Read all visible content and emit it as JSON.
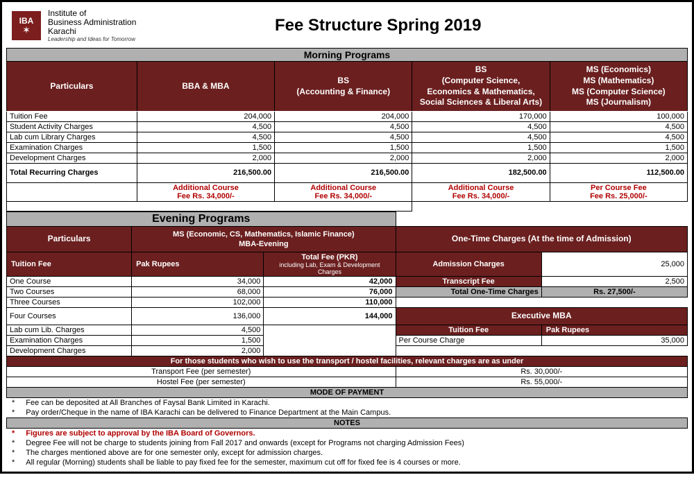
{
  "colors": {
    "maroon": "#6b1f1f",
    "grey": "#b0b0b0",
    "red": "#b00000",
    "black": "#000000",
    "white": "#ffffff"
  },
  "institute": {
    "abbr": "IBA",
    "line1": "Institute of",
    "line2": "Business Administration",
    "line3": "Karachi",
    "motto": "Leadership and Ideas for Tomorrow"
  },
  "title": "Fee Structure Spring 2019",
  "morning": {
    "heading": "Morning Programs",
    "particulars_header": "Particulars",
    "columns": [
      "BBA & MBA",
      "BS\n(Accounting & Finance)",
      "BS\n(Computer Science,\nEconomics & Mathematics,\nSocial Sciences & Liberal Arts)",
      "MS (Economics)\nMS (Mathematics)\nMS (Computer Science)\nMS (Journalism)"
    ],
    "rows": [
      {
        "label": "Tuition Fee",
        "vals": [
          "204,000",
          "204,000",
          "170,000",
          "100,000"
        ]
      },
      {
        "label": "Student Activity Charges",
        "vals": [
          "4,500",
          "4,500",
          "4,500",
          "4,500"
        ]
      },
      {
        "label": "Lab cum Library Charges",
        "vals": [
          "4,500",
          "4,500",
          "4,500",
          "4,500"
        ]
      },
      {
        "label": "Examination Charges",
        "vals": [
          "1,500",
          "1,500",
          "1,500",
          "1,500"
        ]
      },
      {
        "label": "Development Charges",
        "vals": [
          "2,000",
          "2,000",
          "2,000",
          "2,000"
        ]
      }
    ],
    "total_label": "Total Recurring Charges",
    "totals": [
      "216,500.00",
      "216,500.00",
      "182,500.00",
      "112,500.00"
    ],
    "extra": [
      "Additional Course\nFee Rs. 34,000/-",
      "Additional Course\nFee Rs. 34,000/-",
      "Additional Course\nFee Rs. 34,000/-",
      "Per Course Fee\nFee Rs. 25,000/-"
    ]
  },
  "evening": {
    "heading": "Evening Programs",
    "particulars_header": "Particulars",
    "program_header": "MS (Economic, CS, Mathematics, Islamic Finance)\nMBA-Evening",
    "tuition_label": "Tuition Fee",
    "col1": "Pak Rupees",
    "col2_title": "Total Fee (PKR)",
    "col2_sub": "including Lab, Exam & Development Charges",
    "rows": [
      {
        "label": "One Course",
        "v1": "34,000",
        "v2": "42,000"
      },
      {
        "label": "Two Courses",
        "v1": "68,000",
        "v2": "76,000"
      },
      {
        "label": "Three Courses",
        "v1": "102,000",
        "v2": "110,000"
      },
      {
        "label": "Four Courses",
        "v1": "136,000",
        "v2": "144,000"
      }
    ],
    "extras": [
      {
        "label": "Lab cum Lib. Charges",
        "v": "4,500"
      },
      {
        "label": "Examination Charges",
        "v": "1,500"
      },
      {
        "label": "Development Charges",
        "v": "2,000"
      }
    ]
  },
  "onetime": {
    "heading": "One-Time Charges (At the time of Admission)",
    "rows": [
      {
        "label": "Admission Charges",
        "val": "25,000"
      },
      {
        "label": "Transcript Fee",
        "val": "2,500"
      }
    ],
    "total_label": "Total One-Time Charges",
    "total_val": "Rs. 27,500/-"
  },
  "emba": {
    "heading": "Executive MBA",
    "tuition_label": "Tuition Fee",
    "col": "Pak Rupees",
    "row_label": "Per Course Charge",
    "row_val": "35,000"
  },
  "facilities": {
    "heading": "For those students who wish to use the transport / hostel facilities, relevant charges are as under",
    "rows": [
      {
        "label": "Transport Fee (per semester)",
        "val": "Rs. 30,000/-"
      },
      {
        "label": "Hostel Fee (per semester)",
        "val": "Rs. 55,000/-"
      }
    ]
  },
  "mode_heading": "MODE OF PAYMENT",
  "mode_lines": [
    "Fee can be deposited at All Branches of Faysal Bank Limited in Karachi.",
    "Pay order/Cheque in the name of IBA Karachi can be delivered to Finance Department at the Main Campus."
  ],
  "notes_heading": "NOTES",
  "notes_red": "Figures are subject to approval by the IBA Board of Governors.",
  "notes_lines": [
    "Degree Fee will not be charge to students joining from Fall 2017 and onwards (except for Programs not charging Admission Fees)",
    "The charges mentioned above are for one semester only, except for admission charges.",
    "All regular (Morning) students shall be liable to pay fixed fee for the semester, maximum cut off for fixed fee is 4 courses or more."
  ]
}
